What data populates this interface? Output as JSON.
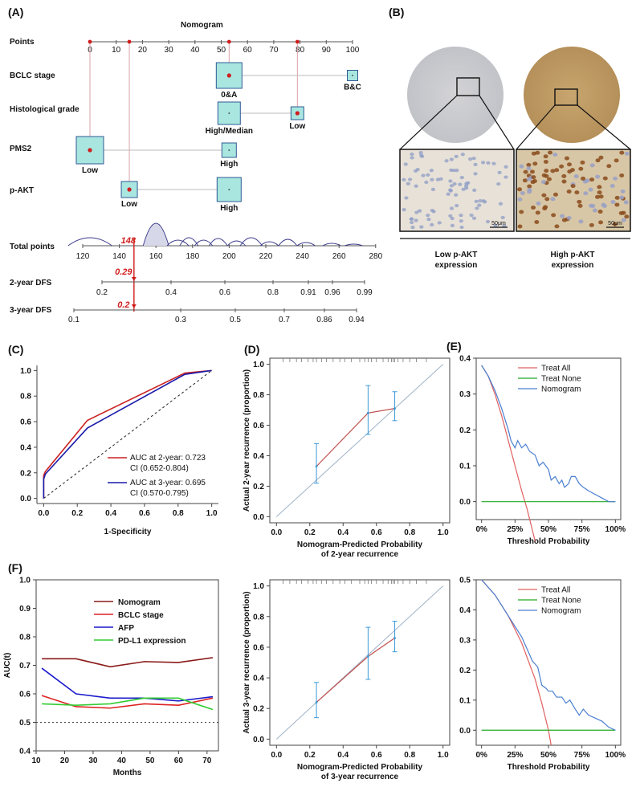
{
  "panels": {
    "A": "(A)",
    "B": "(B)",
    "C": "(C)",
    "D": "(D)",
    "E": "(E)",
    "F": "(F)"
  },
  "nomogram": {
    "title": "Nomogram",
    "rows": {
      "points": "Points",
      "bclc": "BCLC stage",
      "histo": "Histological grade",
      "pms2": "PMS2",
      "pakt": "p-AKT",
      "total": "Total points",
      "dfs2": "2-year DFS",
      "dfs3": "3-year DFS"
    },
    "points_ticks": [
      "0",
      "10",
      "20",
      "30",
      "40",
      "50",
      "60",
      "70",
      "80",
      "90",
      "100"
    ],
    "boxes": {
      "bclc": [
        "0&A",
        "B&C"
      ],
      "histo": [
        "High/Median",
        "Low"
      ],
      "pms2": [
        "Low",
        "High"
      ],
      "pakt": [
        "Low",
        "High"
      ]
    },
    "total_ticks": [
      "120",
      "140",
      "160",
      "180",
      "200",
      "220",
      "240",
      "260",
      "280"
    ],
    "dfs2_ticks": [
      "0.2",
      "0.4",
      "0.6",
      "0.8",
      "0.91",
      "0.96",
      "0.99"
    ],
    "dfs3_ticks": [
      "0.1",
      "0.3",
      "0.5",
      "0.7",
      "0.86",
      "0.94"
    ],
    "annot": {
      "total": "148",
      "dfs2": "0.29",
      "dfs3": "0.2"
    }
  },
  "ihc": {
    "low_label": "Low p-AKT\nexpression",
    "high_label": "High p-AKT\nexpression",
    "scale": "50μm"
  },
  "chart_data": [
    {
      "id": "C",
      "type": "line",
      "title": "",
      "xlabel": "1-Specificity",
      "ylabel": "",
      "xlim": [
        0,
        1
      ],
      "ylim": [
        0,
        1
      ],
      "x_ticks": [
        "0.0",
        "0.2",
        "0.4",
        "0.6",
        "0.8",
        "1.0"
      ],
      "y_ticks": [
        "0.0",
        "0.2",
        "0.4",
        "0.6",
        "0.8",
        "1.0"
      ],
      "series": [
        {
          "name": "AUC at 2-year: 0.723",
          "ci": "CI (0.652-0.804)",
          "color": "#cc2222",
          "x": [
            0,
            0,
            0.01,
            0.26,
            0.84,
            1
          ],
          "y": [
            0,
            0.18,
            0.21,
            0.61,
            0.98,
            1
          ]
        },
        {
          "name": "AUC at 3-year: 0.695",
          "ci": "CI (0.570-0.795)",
          "color": "#1a1aaa",
          "x": [
            0,
            0,
            0.01,
            0.26,
            0.84,
            1
          ],
          "y": [
            0,
            0.15,
            0.19,
            0.55,
            0.97,
            1
          ]
        }
      ],
      "reference": "diagonal dashed"
    },
    {
      "id": "D1",
      "type": "line",
      "xlabel": "Nomogram-Predicted Probability\nof 2-year recurrence",
      "ylabel": "Actual 2-year recurrence (proportion)",
      "xlim": [
        0,
        1
      ],
      "ylim": [
        0,
        1
      ],
      "x_ticks": [
        "0.0",
        "0.2",
        "0.4",
        "0.6",
        "0.8",
        "1.0"
      ],
      "y_ticks": [
        "0.0",
        "0.2",
        "0.4",
        "0.6",
        "0.8",
        "1.0"
      ],
      "series": [
        {
          "name": "calibration",
          "x": [
            0.24,
            0.55,
            0.71
          ],
          "y": [
            0.33,
            0.68,
            0.71
          ],
          "lo": [
            0.22,
            0.54,
            0.63
          ],
          "hi": [
            0.48,
            0.86,
            0.82
          ]
        }
      ],
      "rug": [
        0.04,
        0.08,
        0.12,
        0.15,
        0.19,
        0.22,
        0.24,
        0.27,
        0.3,
        0.34,
        0.38,
        0.41,
        0.45,
        0.5,
        0.53,
        0.55,
        0.57,
        0.6,
        0.64,
        0.67,
        0.69,
        0.7,
        0.71,
        0.73,
        0.76,
        0.8,
        0.84,
        0.9
      ]
    },
    {
      "id": "D2",
      "type": "line",
      "xlabel": "Nomogram-Predicted Probability\nof 3-year recurrence",
      "ylabel": "Actual 3-year recurrence (proportion)",
      "xlim": [
        0,
        1
      ],
      "ylim": [
        0,
        1
      ],
      "x_ticks": [
        "0.0",
        "0.2",
        "0.4",
        "0.6",
        "0.8",
        "1.0"
      ],
      "y_ticks": [
        "0.0",
        "0.2",
        "0.4",
        "0.6",
        "0.8",
        "1.0"
      ],
      "series": [
        {
          "name": "calibration",
          "x": [
            0.24,
            0.55,
            0.71
          ],
          "y": [
            0.24,
            0.54,
            0.66
          ],
          "lo": [
            0.14,
            0.39,
            0.57
          ],
          "hi": [
            0.37,
            0.73,
            0.77
          ]
        }
      ],
      "rug": [
        0.04,
        0.08,
        0.12,
        0.15,
        0.19,
        0.22,
        0.24,
        0.27,
        0.3,
        0.34,
        0.38,
        0.41,
        0.45,
        0.5,
        0.53,
        0.55,
        0.57,
        0.6,
        0.64,
        0.67,
        0.69,
        0.7,
        0.71,
        0.73,
        0.76,
        0.8,
        0.84,
        0.9
      ]
    },
    {
      "id": "E1",
      "type": "line",
      "xlabel": "Threshold Probability",
      "ylabel": "",
      "xlim": [
        0,
        1
      ],
      "ylim": [
        -0.05,
        0.4
      ],
      "x_ticks": [
        "0%",
        "25%",
        "50%",
        "75%",
        "100%"
      ],
      "y_ticks": [
        "0.0",
        "0.1",
        "0.2",
        "0.3",
        "0.4"
      ],
      "series": [
        {
          "name": "Treat All",
          "color": "#e06060",
          "x": [
            0,
            0.05,
            0.1,
            0.15,
            0.2,
            0.25,
            0.3,
            0.34,
            0.38,
            0.4
          ],
          "y": [
            0.38,
            0.35,
            0.3,
            0.24,
            0.17,
            0.1,
            0.03,
            -0.02,
            -0.08,
            -0.11
          ]
        },
        {
          "name": "Treat None",
          "color": "#22aa22",
          "x": [
            0,
            1
          ],
          "y": [
            0,
            0
          ]
        },
        {
          "name": "Nomogram",
          "color": "#4a7fd0",
          "x": [
            0,
            0.05,
            0.1,
            0.15,
            0.2,
            0.22,
            0.25,
            0.27,
            0.3,
            0.33,
            0.36,
            0.4,
            0.43,
            0.46,
            0.5,
            0.52,
            0.55,
            0.58,
            0.6,
            0.62,
            0.65,
            0.67,
            0.7,
            0.73,
            0.76,
            0.8,
            0.85,
            0.9,
            0.95,
            1
          ],
          "y": [
            0.38,
            0.35,
            0.31,
            0.26,
            0.2,
            0.17,
            0.15,
            0.17,
            0.15,
            0.16,
            0.14,
            0.13,
            0.1,
            0.11,
            0.09,
            0.06,
            0.07,
            0.05,
            0.06,
            0.04,
            0.05,
            0.07,
            0.07,
            0.05,
            0.04,
            0.03,
            0.02,
            0.01,
            0,
            0
          ]
        }
      ]
    },
    {
      "id": "E2",
      "type": "line",
      "xlabel": "Threshold Probability",
      "ylabel": "",
      "xlim": [
        0,
        1
      ],
      "ylim": [
        -0.05,
        0.5
      ],
      "x_ticks": [
        "0%",
        "25%",
        "50%",
        "75%",
        "100%"
      ],
      "y_ticks": [
        "0.0",
        "0.1",
        "0.2",
        "0.3",
        "0.4",
        "0.5"
      ],
      "series": [
        {
          "name": "Treat All",
          "color": "#e06060",
          "x": [
            0,
            0.1,
            0.2,
            0.3,
            0.4,
            0.45,
            0.5,
            0.52
          ],
          "y": [
            0.5,
            0.45,
            0.38,
            0.29,
            0.17,
            0.09,
            0,
            -0.05
          ]
        },
        {
          "name": "Treat None",
          "color": "#22aa22",
          "x": [
            0,
            1
          ],
          "y": [
            0,
            0
          ]
        },
        {
          "name": "Nomogram",
          "color": "#4a7fd0",
          "x": [
            0,
            0.1,
            0.2,
            0.3,
            0.35,
            0.38,
            0.42,
            0.45,
            0.48,
            0.5,
            0.53,
            0.56,
            0.6,
            0.63,
            0.66,
            0.7,
            0.73,
            0.76,
            0.8,
            0.85,
            0.9,
            0.95,
            1
          ],
          "y": [
            0.5,
            0.45,
            0.38,
            0.31,
            0.26,
            0.23,
            0.21,
            0.15,
            0.14,
            0.13,
            0.13,
            0.11,
            0.11,
            0.09,
            0.1,
            0.07,
            0.05,
            0.07,
            0.05,
            0.04,
            0.03,
            0.01,
            0
          ]
        }
      ]
    },
    {
      "id": "F",
      "type": "line",
      "xlabel": "Months",
      "ylabel": "AUC(t)",
      "xlim": [
        10,
        74
      ],
      "ylim": [
        0.4,
        1.0
      ],
      "x_ticks": [
        "10",
        "20",
        "30",
        "40",
        "50",
        "60",
        "70"
      ],
      "y_ticks": [
        "0.4",
        "0.5",
        "0.6",
        "0.7",
        "0.8",
        "0.9",
        "1.0"
      ],
      "reference_y": 0.5,
      "series": [
        {
          "name": "Nomogram",
          "color": "#8b1a1a",
          "x": [
            12,
            24,
            36,
            48,
            60,
            72
          ],
          "y": [
            0.723,
            0.723,
            0.695,
            0.713,
            0.71,
            0.727
          ]
        },
        {
          "name": "BCLC stage",
          "color": "#dd2222",
          "x": [
            12,
            24,
            36,
            48,
            60,
            72
          ],
          "y": [
            0.594,
            0.555,
            0.55,
            0.565,
            0.56,
            0.585
          ]
        },
        {
          "name": "AFP",
          "color": "#1a1acc",
          "x": [
            12,
            24,
            36,
            48,
            60,
            72
          ],
          "y": [
            0.69,
            0.6,
            0.585,
            0.585,
            0.575,
            0.59
          ]
        },
        {
          "name": "PD-L1 expression",
          "color": "#33cc33",
          "x": [
            12,
            24,
            36,
            48,
            60,
            72
          ],
          "y": [
            0.565,
            0.56,
            0.565,
            0.585,
            0.585,
            0.545
          ]
        }
      ]
    }
  ]
}
